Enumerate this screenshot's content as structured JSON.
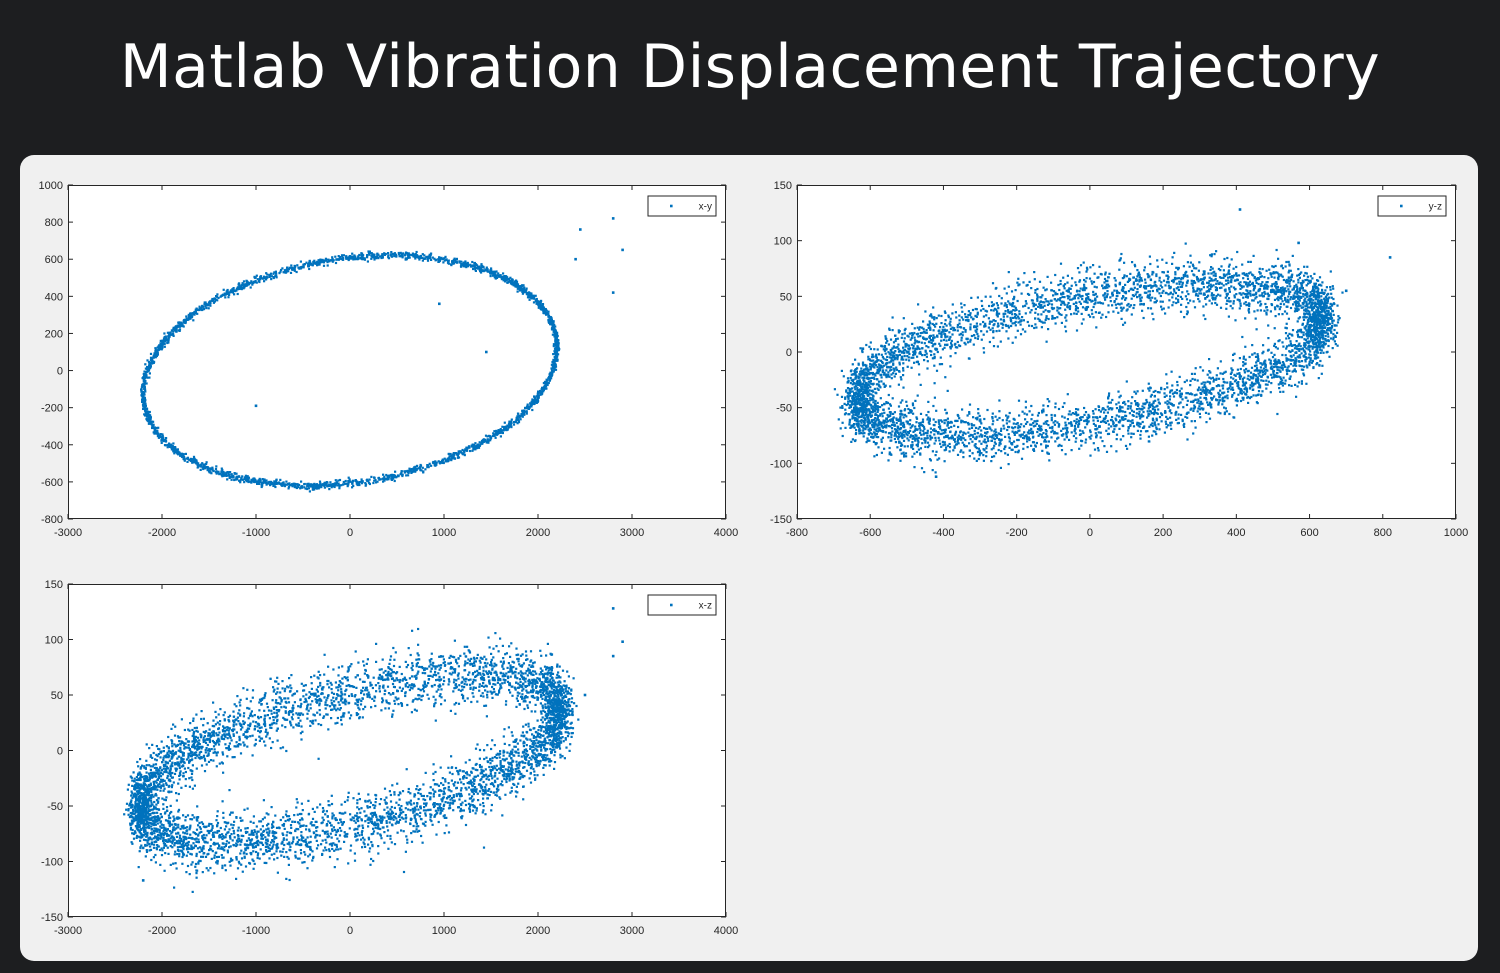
{
  "page_title": "Matlab Vibration Displacement Trajectory",
  "colors": {
    "background": "#1d1e20",
    "panel": "#f0f0f0",
    "marker": "#0072bd",
    "axes": "#262626"
  },
  "chart_data": [
    {
      "id": "xy",
      "type": "scatter",
      "legend": "x-y",
      "legend_position": "top-right",
      "xlim": [
        -3000,
        4000
      ],
      "ylim": [
        -800,
        1000
      ],
      "xticks": [
        "-3000",
        "-2000",
        "-1000",
        "0",
        "1000",
        "2000",
        "3000",
        "4000"
      ],
      "yticks": [
        "1000",
        "800",
        "600",
        "400",
        "200",
        "0",
        "-200",
        "-400",
        "-600",
        "-800"
      ],
      "xtick_values": [
        -3000,
        -2000,
        -1000,
        0,
        1000,
        2000,
        3000,
        4000
      ],
      "ytick_values": [
        1000,
        800,
        600,
        400,
        200,
        0,
        -200,
        -400,
        -600,
        -800
      ],
      "trajectory": {
        "center": [
          0,
          0
        ],
        "a": 2200,
        "b": 620,
        "lean": 0.2,
        "noise": [
          12,
          10
        ],
        "points": 2600
      },
      "outliers": [
        [
          2450,
          760
        ],
        [
          2800,
          820
        ],
        [
          2900,
          650
        ],
        [
          2800,
          420
        ],
        [
          2400,
          600
        ],
        [
          -1000,
          -190
        ],
        [
          950,
          360
        ],
        [
          1450,
          100
        ]
      ]
    },
    {
      "id": "yz",
      "type": "scatter",
      "legend": "y-z",
      "legend_position": "top-right",
      "xlim": [
        -800,
        1000
      ],
      "ylim": [
        -150,
        150
      ],
      "xticks": [
        "-800",
        "-600",
        "-400",
        "-200",
        "0",
        "200",
        "400",
        "600",
        "800",
        "1000"
      ],
      "yticks": [
        "150",
        "100",
        "50",
        "0",
        "-50",
        "-100",
        "-150"
      ],
      "xtick_values": [
        -800,
        -600,
        -400,
        -200,
        0,
        200,
        400,
        600,
        800,
        1000
      ],
      "ytick_values": [
        150,
        100,
        50,
        0,
        -50,
        -100,
        -150
      ],
      "trajectory": {
        "center": [
          0,
          -7
        ],
        "a": 640,
        "b": 68,
        "lean": 0.55,
        "noise": [
          18,
          12
        ],
        "points": 5200
      },
      "outliers": [
        [
          410,
          128
        ],
        [
          820,
          85
        ],
        [
          700,
          55
        ],
        [
          570,
          98
        ],
        [
          -660,
          -40
        ],
        [
          -420,
          -112
        ],
        [
          -620,
          3
        ]
      ]
    },
    {
      "id": "xz",
      "type": "scatter",
      "legend": "x-z",
      "legend_position": "top-right",
      "xlim": [
        -3000,
        4000
      ],
      "ylim": [
        -150,
        150
      ],
      "xticks": [
        "-3000",
        "-2000",
        "-1000",
        "0",
        "1000",
        "2000",
        "3000",
        "4000"
      ],
      "yticks": [
        "150",
        "100",
        "50",
        "0",
        "-50",
        "-100",
        "-150"
      ],
      "xtick_values": [
        -3000,
        -2000,
        -1000,
        0,
        1000,
        2000,
        3000,
        4000
      ],
      "ytick_values": [
        150,
        100,
        50,
        0,
        -50,
        -100,
        -150
      ],
      "trajectory": {
        "center": [
          0,
          -8
        ],
        "a": 2250,
        "b": 75,
        "lean": 0.62,
        "noise": [
          60,
          13
        ],
        "points": 5200
      },
      "outliers": [
        [
          2800,
          128
        ],
        [
          2900,
          98
        ],
        [
          2800,
          85
        ],
        [
          2500,
          50
        ],
        [
          -2200,
          -117
        ],
        [
          -1100,
          -85
        ]
      ]
    }
  ]
}
